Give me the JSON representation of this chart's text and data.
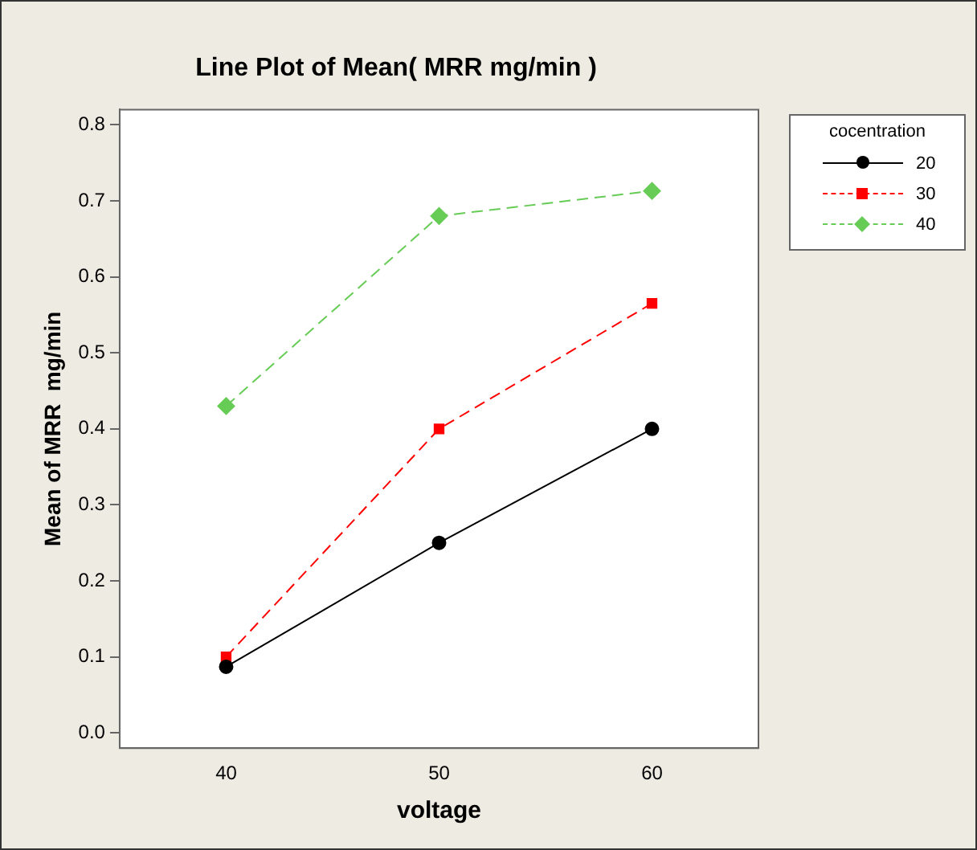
{
  "chart_data": {
    "type": "line",
    "title": "Line Plot of Mean( MRR mg/min )",
    "xlabel": "voltage",
    "ylabel": "Mean of MRR  mg/min",
    "legend_title": "cocentration",
    "x": [
      40,
      50,
      60
    ],
    "xlim": [
      35,
      65
    ],
    "xticks": [
      40,
      50,
      60
    ],
    "ylim": [
      -0.02,
      0.82
    ],
    "yticks": [
      {
        "value": 0,
        "label": "0.0"
      },
      0.1,
      0.2,
      0.3,
      0.4,
      0.5,
      0.6,
      0.7,
      0.8
    ],
    "series": [
      {
        "name": "20",
        "color": "#000000",
        "values": [
          0.087,
          0.25,
          0.4
        ],
        "marker": "circle",
        "line_style": "solid"
      },
      {
        "name": "30",
        "color": "#ff0000",
        "values": [
          0.1,
          0.4,
          0.565
        ],
        "marker": "square",
        "line_style": "dashed"
      },
      {
        "name": "40",
        "color": "#66cc55",
        "values": [
          0.43,
          0.68,
          0.713
        ],
        "marker": "diamond",
        "line_style": "dashed"
      }
    ],
    "grid": false,
    "legend": "right"
  }
}
